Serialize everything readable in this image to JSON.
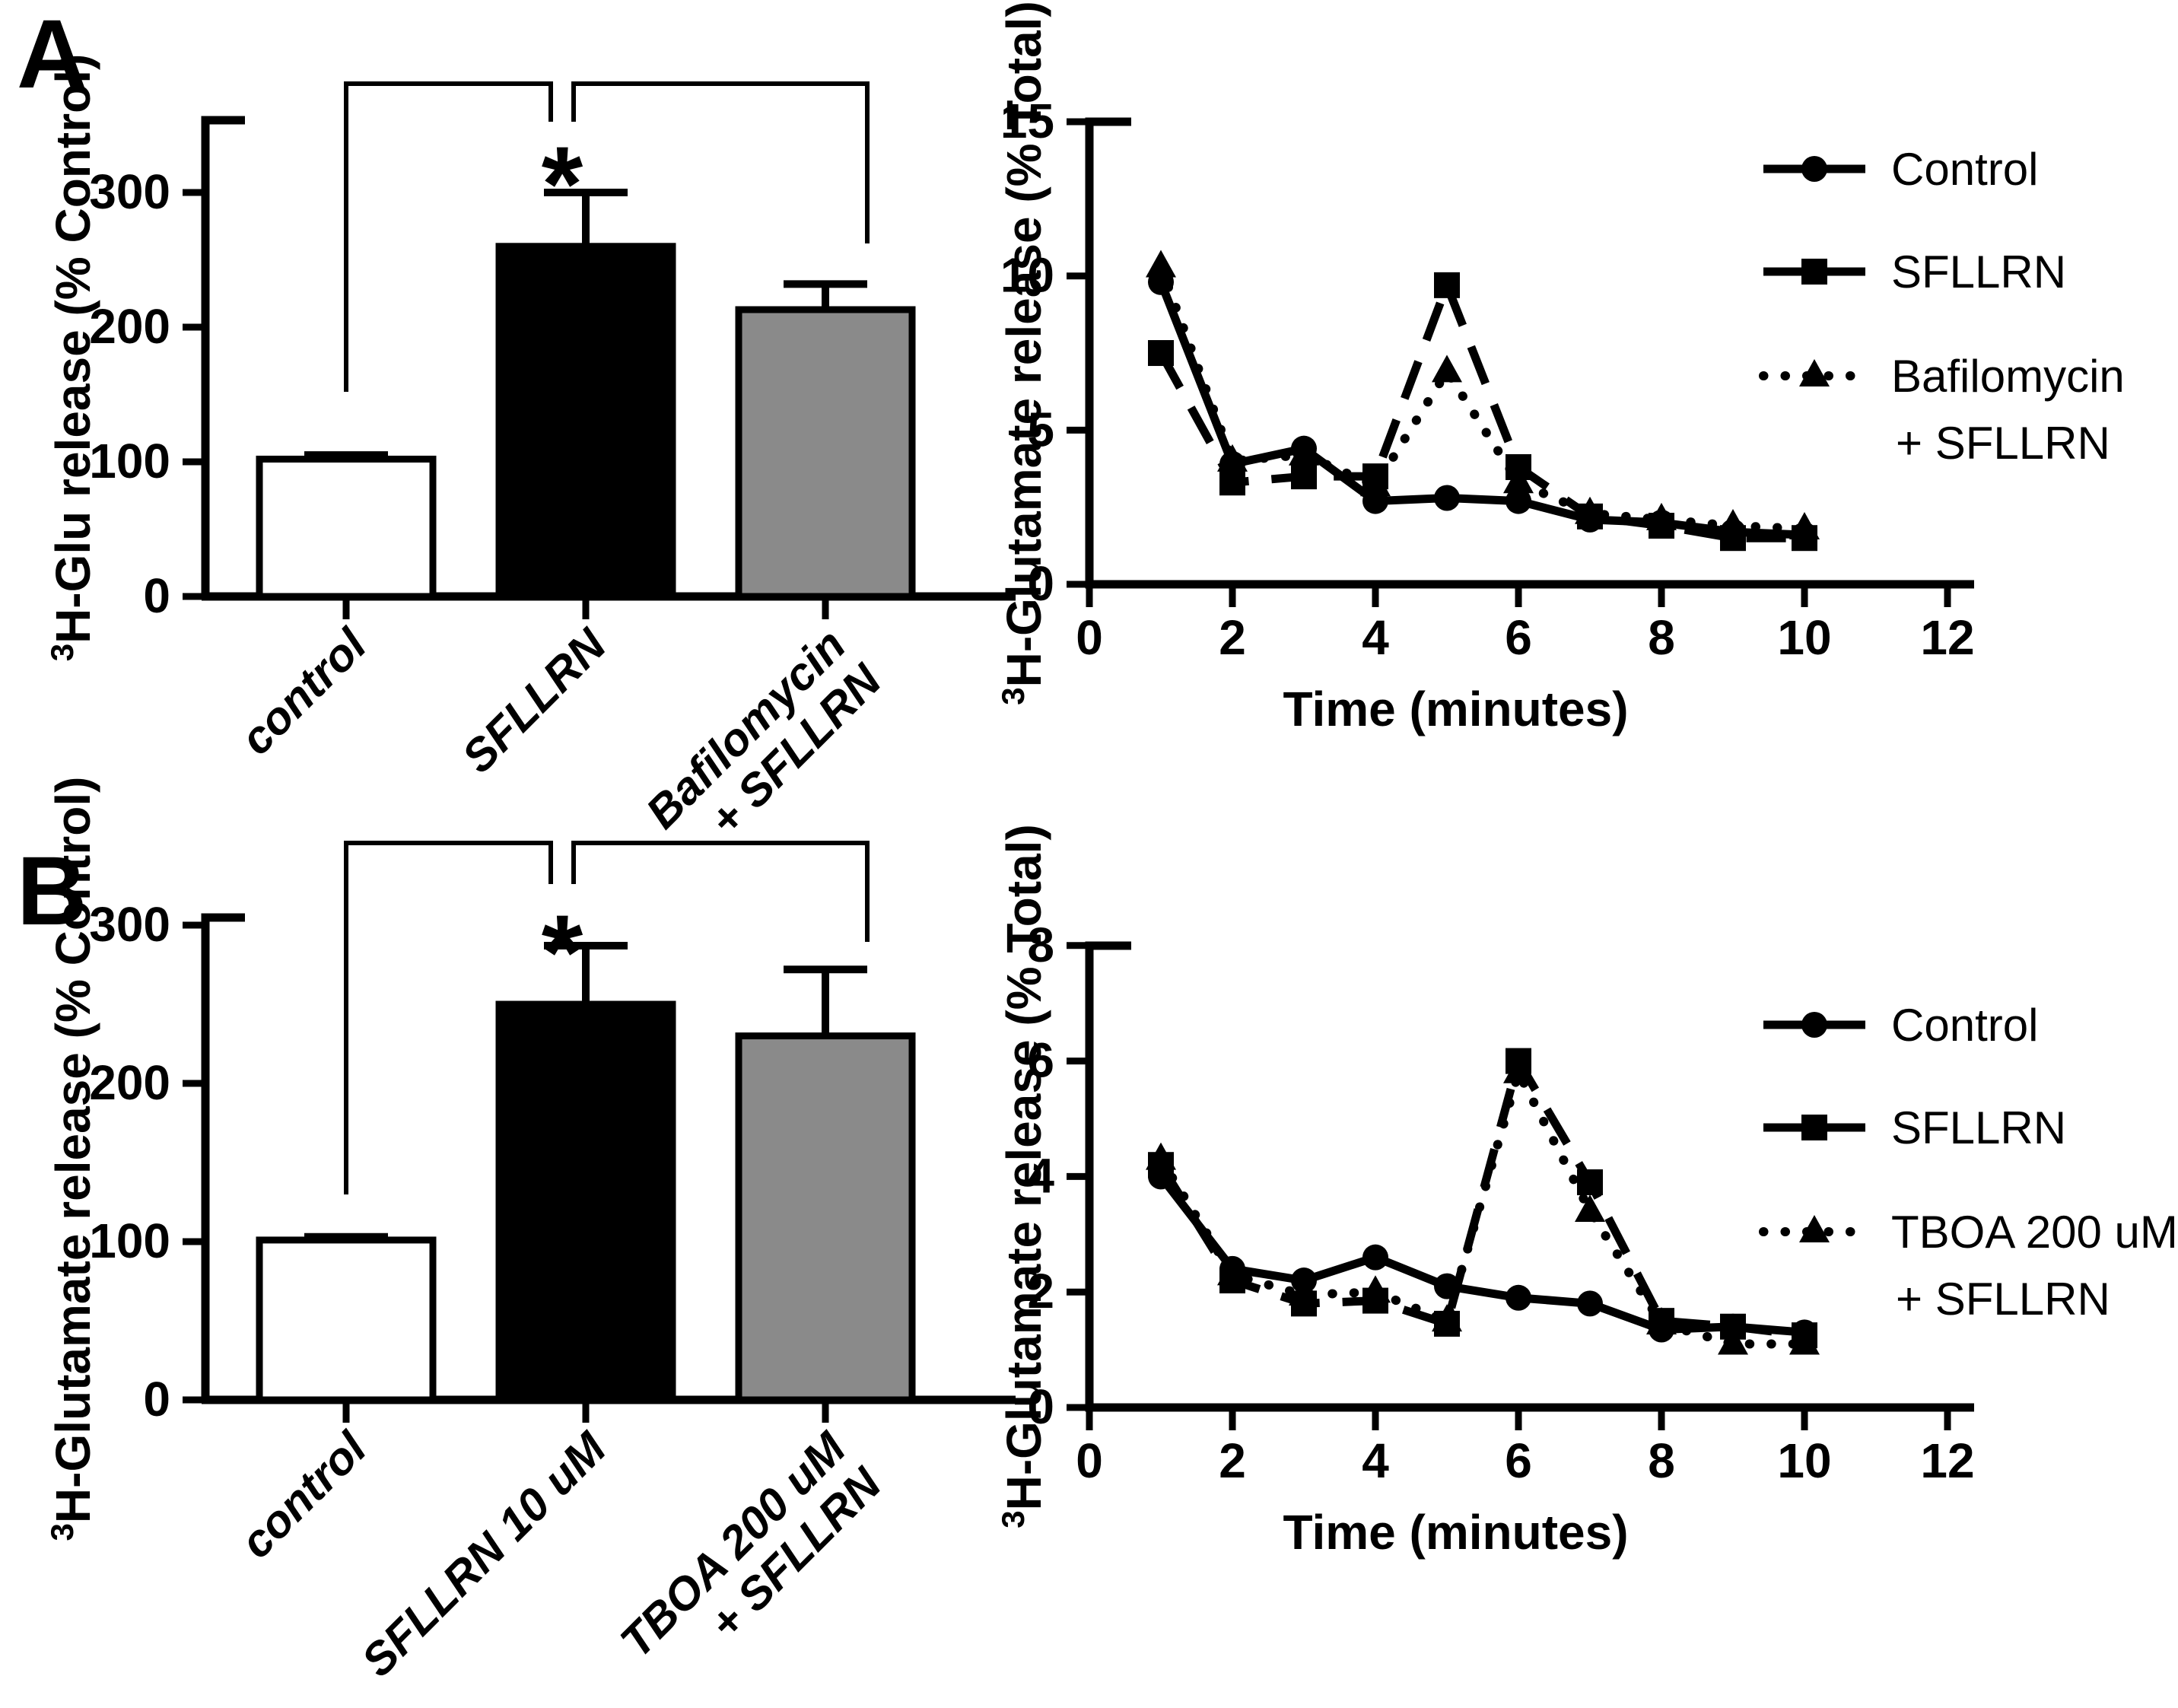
{
  "page": {
    "background": "#ffffff",
    "ink": "#000000"
  },
  "panels": [
    {
      "label": "A"
    },
    {
      "label": "B"
    }
  ],
  "chart_data": [
    {
      "id": "panel-A-bar",
      "type": "bar",
      "panel": "A",
      "ylabel_sup": "3",
      "ylabel": "H-Glu release (% Control)",
      "categories": [
        [
          "control"
        ],
        [
          "SFLLRN"
        ],
        [
          "Bafilomycin",
          "+ SFLLRN"
        ]
      ],
      "values": [
        102,
        260,
        213
      ],
      "errors": [
        3,
        40,
        19
      ],
      "bar_colors": [
        "#ffffff",
        "#000000",
        "#8a8a8a"
      ],
      "ylim": [
        0,
        355
      ],
      "yticks": [
        0,
        100,
        200,
        300
      ],
      "grid": "off",
      "significance_symbol": "*"
    },
    {
      "id": "panel-A-line",
      "type": "line",
      "panel": "A",
      "ylabel_sup": "3",
      "ylabel": "H-Glutamate release (% Total)",
      "xlabel": "Time (minutes)",
      "xlim": [
        0,
        12
      ],
      "ylim": [
        0,
        15
      ],
      "xticks": [
        0,
        2,
        4,
        6,
        8,
        10,
        12
      ],
      "yticks": [
        0,
        5,
        10,
        15
      ],
      "grid": "off",
      "legend_position": "right",
      "x": [
        1,
        2,
        3,
        4,
        5,
        6,
        7,
        8,
        9,
        10
      ],
      "series": [
        {
          "name": [
            "Control"
          ],
          "marker": "circle",
          "line": "solid",
          "values": [
            9.8,
            3.9,
            4.4,
            2.7,
            2.8,
            2.7,
            2.1,
            2.0,
            1.7,
            1.6
          ]
        },
        {
          "name": [
            "SFLLRN"
          ],
          "marker": "square",
          "line": "dashed",
          "values": [
            7.5,
            3.3,
            3.5,
            3.5,
            9.7,
            3.8,
            2.2,
            1.9,
            1.5,
            1.5
          ]
        },
        {
          "name": [
            "Bafilomycin",
            "+ SFLLRN"
          ],
          "marker": "triangle",
          "line": "dotted",
          "values": [
            10.3,
            4.0,
            4.2,
            3.2,
            6.9,
            3.3,
            2.3,
            2.1,
            1.9,
            1.8
          ]
        }
      ]
    },
    {
      "id": "panel-B-bar",
      "type": "bar",
      "panel": "B",
      "ylabel_sup": "3",
      "ylabel": "H-Glutamate release (% Control)",
      "categories": [
        [
          "control"
        ],
        [
          "SFLLRN 10 uM"
        ],
        [
          "TBOA 200 uM",
          "+ SFLLRN"
        ]
      ],
      "values": [
        101,
        250,
        230
      ],
      "errors": [
        2,
        37,
        42
      ],
      "bar_colors": [
        "#ffffff",
        "#000000",
        "#8a8a8a"
      ],
      "ylim": [
        0,
        305
      ],
      "yticks": [
        0,
        100,
        200,
        300
      ],
      "grid": "off",
      "significance_symbol": "*"
    },
    {
      "id": "panel-B-line",
      "type": "line",
      "panel": "B",
      "ylabel_sup": "3",
      "ylabel": "H-Glutamate release (% Total)",
      "xlabel": "Time (minutes)",
      "xlim": [
        0,
        12
      ],
      "ylim": [
        0,
        8
      ],
      "xticks": [
        0,
        2,
        4,
        6,
        8,
        10,
        12
      ],
      "yticks": [
        0,
        2,
        4,
        6,
        8
      ],
      "grid": "off",
      "legend_position": "right",
      "x": [
        1,
        2,
        3,
        4,
        5,
        6,
        7,
        8,
        9,
        10
      ],
      "series": [
        {
          "name": [
            "Control"
          ],
          "marker": "circle",
          "line": "solid",
          "values": [
            4.0,
            2.4,
            2.2,
            2.6,
            2.1,
            1.9,
            1.8,
            1.35,
            1.4,
            1.3
          ]
        },
        {
          "name": [
            "SFLLRN"
          ],
          "marker": "square",
          "line": "dashed",
          "values": [
            4.2,
            2.2,
            1.8,
            1.85,
            1.45,
            6.0,
            3.9,
            1.5,
            1.4,
            1.25
          ]
        },
        {
          "name": [
            "TBOA 200 uM",
            "+ SFLLRN"
          ],
          "marker": "triangle",
          "line": "dotted",
          "values": [
            4.3,
            2.3,
            1.95,
            2.0,
            1.5,
            5.8,
            3.4,
            1.45,
            1.1,
            1.1
          ]
        }
      ]
    }
  ]
}
